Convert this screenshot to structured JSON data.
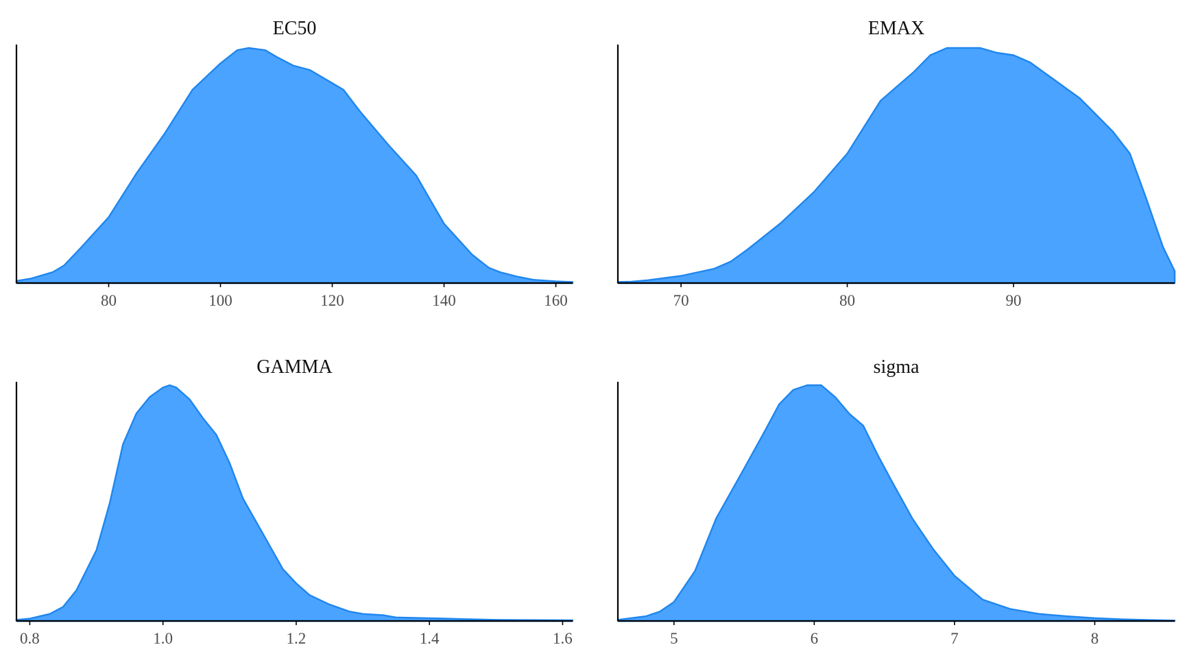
{
  "colors": {
    "fill": "#4aa3ff",
    "line": "#1f86ee",
    "axis": "#000000",
    "tick_text": "#4d4d4d",
    "title_text": "#111111"
  },
  "chart_data": [
    {
      "type": "area",
      "title": "EC50",
      "xlabel": "",
      "ylabel": "",
      "xlim": [
        63.5,
        163
      ],
      "ticks": [
        80,
        100,
        120,
        140,
        160
      ],
      "tick_labels": [
        "80",
        "100",
        "120",
        "140",
        "160"
      ],
      "grid": false,
      "series": [
        {
          "x": [
            63.5,
            66,
            70,
            72,
            75,
            80,
            85,
            90,
            95,
            100,
            103,
            105,
            108,
            110,
            113,
            116,
            120,
            122,
            125,
            130,
            135,
            140,
            145,
            148,
            150,
            153,
            156,
            160,
            163
          ],
          "y": [
            0.01,
            0.02,
            0.05,
            0.08,
            0.16,
            0.3,
            0.5,
            0.68,
            0.88,
            1.0,
            1.06,
            1.07,
            1.06,
            1.03,
            0.99,
            0.97,
            0.91,
            0.88,
            0.78,
            0.63,
            0.49,
            0.27,
            0.13,
            0.07,
            0.05,
            0.03,
            0.015,
            0.008,
            0.005
          ]
        }
      ]
    },
    {
      "type": "area",
      "title": "EMAX",
      "xlabel": "",
      "ylabel": "",
      "xlim": [
        66.2,
        99.7
      ],
      "ticks": [
        70,
        80,
        90
      ],
      "tick_labels": [
        "70",
        "80",
        "90"
      ],
      "grid": false,
      "series": [
        {
          "x": [
            66.2,
            67,
            68,
            70,
            72,
            73,
            74,
            76,
            78,
            80,
            82,
            83,
            84,
            85,
            86,
            87,
            88,
            89,
            90,
            91,
            92,
            93,
            94,
            95,
            96,
            97,
            98,
            99,
            99.7
          ],
          "y": [
            0.005,
            0.006,
            0.012,
            0.03,
            0.06,
            0.09,
            0.14,
            0.25,
            0.38,
            0.54,
            0.76,
            0.82,
            0.88,
            0.95,
            0.98,
            0.98,
            0.98,
            0.96,
            0.95,
            0.92,
            0.87,
            0.82,
            0.77,
            0.7,
            0.63,
            0.54,
            0.35,
            0.15,
            0.05
          ]
        }
      ]
    },
    {
      "type": "area",
      "title": "GAMMA",
      "xlabel": "",
      "ylabel": "",
      "xlim": [
        0.78,
        1.615
      ],
      "ticks": [
        0.8,
        1.0,
        1.2,
        1.4,
        1.6
      ],
      "tick_labels": [
        "0.8",
        "1.0",
        "1.2",
        "1.4",
        "1.6"
      ],
      "grid": false,
      "series": [
        {
          "x": [
            0.78,
            0.8,
            0.83,
            0.85,
            0.87,
            0.9,
            0.92,
            0.94,
            0.96,
            0.98,
            1.0,
            1.01,
            1.02,
            1.04,
            1.06,
            1.08,
            1.1,
            1.12,
            1.15,
            1.18,
            1.2,
            1.22,
            1.25,
            1.28,
            1.3,
            1.33,
            1.35,
            1.4,
            1.45,
            1.5,
            1.55,
            1.615
          ],
          "y": [
            0.005,
            0.01,
            0.03,
            0.06,
            0.13,
            0.3,
            0.5,
            0.75,
            0.88,
            0.95,
            0.99,
            1.0,
            0.99,
            0.94,
            0.86,
            0.79,
            0.67,
            0.52,
            0.37,
            0.22,
            0.16,
            0.11,
            0.07,
            0.04,
            0.03,
            0.025,
            0.015,
            0.012,
            0.008,
            0.005,
            0.004,
            0.003
          ]
        }
      ]
    },
    {
      "type": "area",
      "title": "sigma",
      "xlabel": "",
      "ylabel": "",
      "xlim": [
        4.6,
        8.57
      ],
      "ticks": [
        5,
        6,
        7,
        8
      ],
      "tick_labels": [
        "5",
        "6",
        "7",
        "8"
      ],
      "grid": false,
      "series": [
        {
          "x": [
            4.6,
            4.8,
            4.9,
            5.0,
            5.15,
            5.3,
            5.5,
            5.65,
            5.75,
            5.85,
            5.95,
            6.05,
            6.15,
            6.25,
            6.35,
            6.45,
            6.55,
            6.7,
            6.85,
            7.0,
            7.2,
            7.4,
            7.6,
            7.8,
            8.0,
            8.2,
            8.4,
            8.57
          ],
          "y": [
            0.005,
            0.02,
            0.04,
            0.08,
            0.21,
            0.43,
            0.64,
            0.8,
            0.91,
            0.97,
            0.99,
            0.99,
            0.94,
            0.87,
            0.82,
            0.7,
            0.59,
            0.43,
            0.3,
            0.19,
            0.09,
            0.05,
            0.03,
            0.02,
            0.012,
            0.007,
            0.004,
            0.002
          ]
        }
      ]
    }
  ]
}
